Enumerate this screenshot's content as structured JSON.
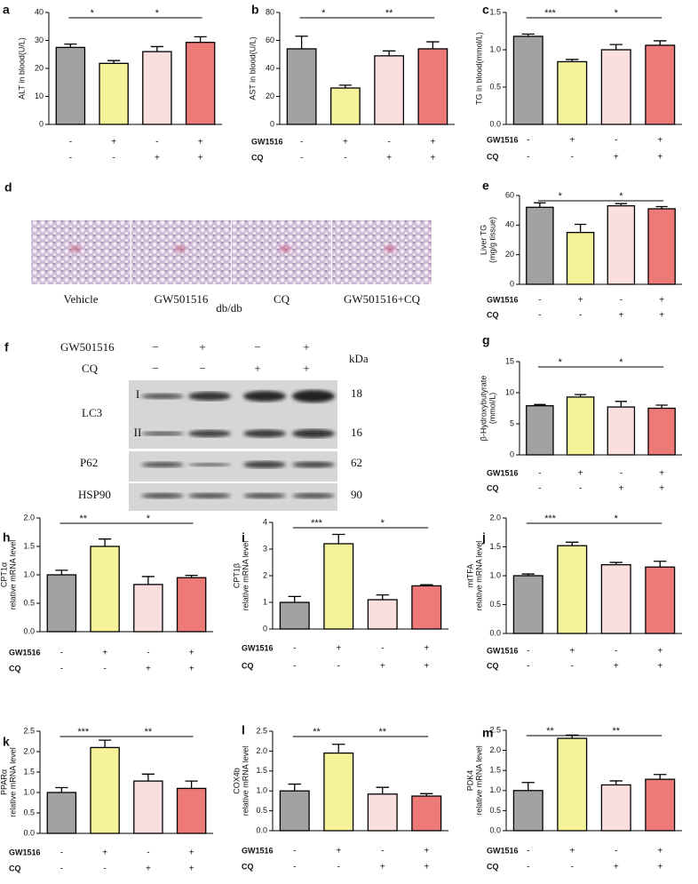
{
  "chart_data": [
    {
      "type": "bar",
      "panel": "a",
      "ylabel": [
        "ALT in blood(U/L)"
      ],
      "values": [
        27.5,
        21.8,
        26,
        29.3
      ],
      "errors": [
        1.2,
        1,
        1.8,
        2
      ],
      "colors": [
        "#a2a2a4",
        "#f5f29a",
        "#fbdede",
        "#ee7a78"
      ],
      "ylim": [
        0,
        40
      ],
      "yticks": [
        0,
        10,
        20,
        30,
        40
      ],
      "significance": [
        "*",
        "*"
      ],
      "rows": [
        {
          "signs": [
            "-",
            "+",
            "-",
            "+"
          ]
        },
        {
          "signs": [
            "-",
            "-",
            "+",
            "+"
          ]
        }
      ]
    },
    {
      "type": "bar",
      "panel": "b",
      "ylabel": [
        "AST in blood(U/L)"
      ],
      "values": [
        54,
        26,
        49,
        54
      ],
      "errors": [
        9,
        2,
        3.5,
        5
      ],
      "colors": [
        "#a2a2a4",
        "#f5f29a",
        "#fbdede",
        "#ee7a78"
      ],
      "ylim": [
        0,
        80
      ],
      "yticks": [
        0,
        20,
        40,
        60,
        80
      ],
      "significance": [
        "*",
        "**"
      ],
      "rows": [
        {
          "name": "GW1516",
          "signs": [
            "-",
            "+",
            "-",
            "+"
          ]
        },
        {
          "name": "CQ",
          "signs": [
            "-",
            "-",
            "+",
            "+"
          ]
        }
      ]
    },
    {
      "type": "bar",
      "panel": "c",
      "ylabel": [
        "TG in blood(mmol/L)"
      ],
      "values": [
        1.18,
        0.84,
        1.0,
        1.06
      ],
      "errors": [
        0.03,
        0.03,
        0.07,
        0.06
      ],
      "colors": [
        "#a2a2a4",
        "#f5f29a",
        "#fbdede",
        "#ee7a78"
      ],
      "ylim": [
        0,
        1.5
      ],
      "yticks": [
        {
          "value": 0,
          "label": "0.0"
        },
        0.5,
        {
          "value": 1,
          "label": "1.0"
        },
        1.5
      ],
      "significance": [
        "***",
        "*"
      ],
      "rows": [
        {
          "name": "GW1516",
          "signs": [
            "-",
            "+",
            "-",
            "+"
          ]
        },
        {
          "name": "CQ",
          "signs": [
            "-",
            "-",
            "+",
            "+"
          ]
        }
      ]
    },
    {
      "type": "bar",
      "panel": "e",
      "ylabel": [
        "Liver TG",
        "(mg/g tissue)"
      ],
      "values": [
        52,
        35,
        53,
        51
      ],
      "errors": [
        3,
        5.5,
        1.5,
        1.5
      ],
      "colors": [
        "#a2a2a4",
        "#f5f29a",
        "#fbdede",
        "#ee7a78"
      ],
      "ylim": [
        0,
        60
      ],
      "yticks": [
        0,
        20,
        40,
        60
      ],
      "significance": [
        "*",
        "*"
      ],
      "rows": [
        {
          "name": "GW1516",
          "signs": [
            "-",
            "+",
            "-",
            "+"
          ]
        },
        {
          "name": "CQ",
          "signs": [
            "-",
            "-",
            "+",
            "+"
          ]
        }
      ]
    },
    {
      "type": "bar",
      "panel": "g",
      "ylabel": [
        "β-Hydroxybutyrate",
        "(mmol/L)"
      ],
      "values": [
        7.9,
        9.3,
        7.7,
        7.5
      ],
      "errors": [
        0.2,
        0.4,
        0.9,
        0.5
      ],
      "colors": [
        "#a2a2a4",
        "#f5f29a",
        "#fbdede",
        "#ee7a78"
      ],
      "ylim": [
        0,
        15
      ],
      "yticks": [
        0,
        5,
        10,
        15
      ],
      "significance": [
        "*",
        "*"
      ],
      "rows": [
        {
          "name": "GW1516",
          "signs": [
            "-",
            "+",
            "-",
            "+"
          ]
        },
        {
          "name": "CQ",
          "signs": [
            "-",
            "-",
            "+",
            "+"
          ]
        }
      ]
    },
    {
      "type": "bar",
      "panel": "h",
      "ylabel": [
        "CPT1α",
        "relative mRNA level"
      ],
      "values": [
        1.0,
        1.5,
        0.83,
        0.95
      ],
      "errors": [
        0.08,
        0.13,
        0.14,
        0.04
      ],
      "colors": [
        "#a2a2a4",
        "#f5f29a",
        "#fbdede",
        "#ee7a78"
      ],
      "ylim": [
        0,
        2
      ],
      "yticks": [
        {
          "value": 0,
          "label": "0.0"
        },
        0.5,
        {
          "value": 1,
          "label": "1.0"
        },
        1.5,
        {
          "value": 2,
          "label": "2.0"
        }
      ],
      "significance": [
        "**",
        "*"
      ],
      "rows": [
        {
          "name": "GW1516",
          "signs": [
            "-",
            "+",
            "-",
            "+"
          ]
        },
        {
          "name": "CQ",
          "signs": [
            "-",
            "-",
            "+",
            "+"
          ]
        }
      ]
    },
    {
      "type": "bar",
      "panel": "i",
      "ylabel": [
        "CPT1β",
        "relative mRNA level"
      ],
      "values": [
        1.0,
        3.2,
        1.1,
        1.62
      ],
      "errors": [
        0.22,
        0.35,
        0.18,
        0.04
      ],
      "colors": [
        "#a2a2a4",
        "#f5f29a",
        "#fbdede",
        "#ee7a78"
      ],
      "ylim": [
        0,
        4
      ],
      "yticks": [
        0,
        1,
        2,
        3,
        4
      ],
      "significance": [
        "***",
        "*"
      ],
      "rows": [
        {
          "name": "GW1516",
          "signs": [
            "-",
            "+",
            "-",
            "+"
          ]
        },
        {
          "name": "CQ",
          "signs": [
            "-",
            "-",
            "+",
            "+"
          ]
        }
      ]
    },
    {
      "type": "bar",
      "panel": "j",
      "ylabel": [
        "mtTFA",
        "relative mRNA level"
      ],
      "values": [
        1.0,
        1.52,
        1.19,
        1.15
      ],
      "errors": [
        0.03,
        0.06,
        0.04,
        0.1
      ],
      "colors": [
        "#a2a2a4",
        "#f5f29a",
        "#fbdede",
        "#ee7a78"
      ],
      "ylim": [
        0,
        2
      ],
      "yticks": [
        {
          "value": 0,
          "label": "0.0"
        },
        0.5,
        {
          "value": 1,
          "label": "1.0"
        },
        1.5,
        {
          "value": 2,
          "label": "2.0"
        }
      ],
      "significance": [
        "***",
        "*"
      ],
      "rows": [
        {
          "name": "GW1516",
          "signs": [
            "-",
            "+",
            "-",
            "+"
          ]
        },
        {
          "name": "CQ",
          "signs": [
            "-",
            "-",
            "+",
            "+"
          ]
        }
      ]
    },
    {
      "type": "bar",
      "panel": "k",
      "ylabel": [
        "PPARα",
        "relative mRNA level"
      ],
      "values": [
        1.0,
        2.1,
        1.28,
        1.1
      ],
      "errors": [
        0.12,
        0.18,
        0.17,
        0.18
      ],
      "colors": [
        "#a2a2a4",
        "#f5f29a",
        "#fbdede",
        "#ee7a78"
      ],
      "ylim": [
        0,
        2.5
      ],
      "yticks": [
        {
          "value": 0,
          "label": "0.0"
        },
        0.5,
        {
          "value": 1,
          "label": "1.0"
        },
        1.5,
        {
          "value": 2,
          "label": "2.0"
        },
        2.5
      ],
      "significance": [
        "***",
        "**"
      ],
      "rows": [
        {
          "name": "GW1516",
          "signs": [
            "-",
            "+",
            "-",
            "+"
          ]
        },
        {
          "name": "CQ",
          "signs": [
            "-",
            "-",
            "+",
            "+"
          ]
        }
      ]
    },
    {
      "type": "bar",
      "panel": "l",
      "ylabel": [
        "COX4b",
        "relative mRNA level"
      ],
      "values": [
        1.0,
        1.95,
        0.92,
        0.87
      ],
      "errors": [
        0.17,
        0.22,
        0.17,
        0.06
      ],
      "colors": [
        "#a2a2a4",
        "#f5f29a",
        "#fbdede",
        "#ee7a78"
      ],
      "ylim": [
        0,
        2.5
      ],
      "yticks": [
        {
          "value": 0,
          "label": "0.0"
        },
        0.5,
        {
          "value": 1,
          "label": "1.0"
        },
        1.5,
        {
          "value": 2,
          "label": "2.0"
        },
        2.5
      ],
      "significance": [
        "**",
        "**"
      ],
      "rows": [
        {
          "name": "GW1516",
          "signs": [
            "-",
            "+",
            "-",
            "+"
          ]
        },
        {
          "name": "CQ",
          "signs": [
            "-",
            "-",
            "+",
            "+"
          ]
        }
      ]
    },
    {
      "type": "bar",
      "panel": "m",
      "ylabel": [
        "PDK4",
        "relative mRNA level"
      ],
      "values": [
        1.0,
        2.3,
        1.14,
        1.28
      ],
      "errors": [
        0.2,
        0.08,
        0.1,
        0.12
      ],
      "colors": [
        "#a2a2a4",
        "#f5f29a",
        "#fbdede",
        "#ee7a78"
      ],
      "ylim": [
        0,
        2.5
      ],
      "yticks": [
        {
          "value": 0,
          "label": "0.0"
        },
        0.5,
        {
          "value": 1,
          "label": "1.0"
        },
        1.5,
        {
          "value": 2,
          "label": "2.0"
        },
        2.5
      ],
      "significance": [
        "**",
        "**"
      ],
      "rows": [
        {
          "name": "GW1516",
          "signs": [
            "-",
            "+",
            "-",
            "+"
          ]
        },
        {
          "name": "CQ",
          "signs": [
            "-",
            "-",
            "+",
            "+"
          ]
        }
      ]
    }
  ],
  "histology": {
    "panel": "d",
    "images": [
      "Vehicle",
      "GW501516",
      "CQ",
      "GW501516+CQ"
    ],
    "caption": "db/db"
  },
  "blot": {
    "panel": "f",
    "header_rows": [
      {
        "name": "GW501516",
        "signs": [
          "−",
          "+",
          "−",
          "+"
        ]
      },
      {
        "name": "CQ",
        "signs": [
          "−",
          "−",
          "+",
          "+"
        ]
      }
    ],
    "unit": "kDa",
    "proteins": [
      {
        "name": "LC3",
        "bands": [
          {
            "label": "I",
            "kda": 18
          },
          {
            "label": "II",
            "kda": 16
          }
        ]
      },
      {
        "name": "P62",
        "kda": 62
      },
      {
        "name": "HSP90",
        "kda": 90
      }
    ]
  }
}
